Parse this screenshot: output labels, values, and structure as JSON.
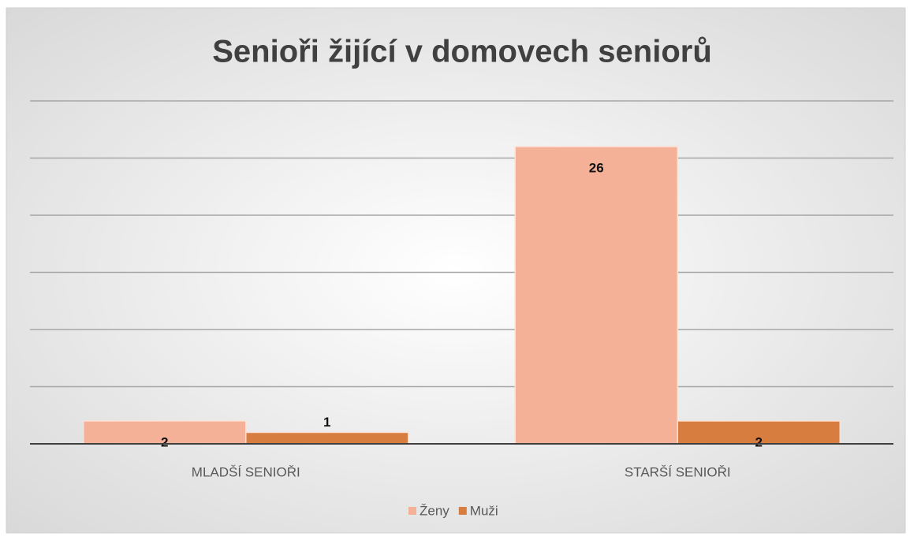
{
  "chart_data": {
    "type": "bar",
    "title": "Senioři žijící v domovech seniorů",
    "categories": [
      "MLADŠÍ SENIOŘI",
      "STARŠÍ SENIOŘI"
    ],
    "series": [
      {
        "name": "Ženy",
        "color": "#f4b198",
        "values": [
          2,
          26
        ]
      },
      {
        "name": "Muži",
        "color": "#d77d3f",
        "values": [
          1,
          2
        ]
      }
    ],
    "ylim": [
      0,
      30
    ],
    "yticks": [
      0,
      5,
      10,
      15,
      20,
      25,
      30
    ],
    "grid": true,
    "legend": "bottom"
  }
}
